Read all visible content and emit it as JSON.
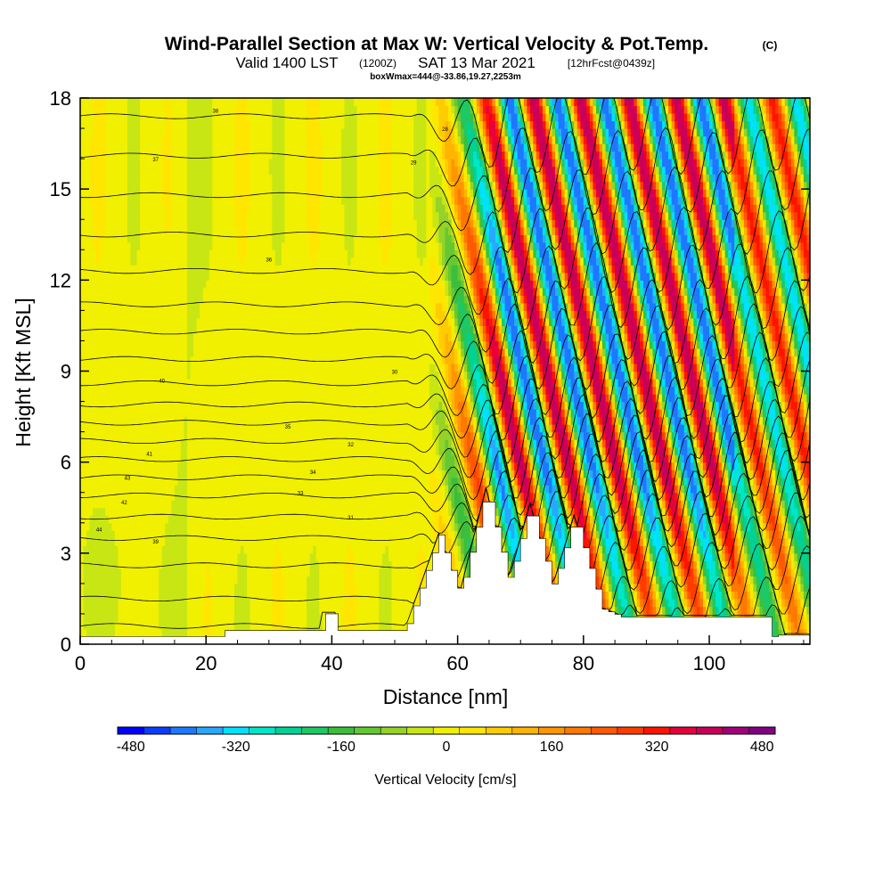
{
  "chart_data": {
    "type": "heatmap",
    "title": {
      "main": "Wind-Parallel Section at Max W: Vertical Velocity & Pot.Temp.",
      "copyright": "(C)",
      "valid_prefix": "Valid 1400 LST",
      "valid_utc": "(1200Z)",
      "valid_date": "SAT 13 Mar 2021",
      "forecast": "[12hrFcst@0439z]",
      "box_info": "boxWmax=444@-33.86,19.27,2253m"
    },
    "xlabel": "Distance [nm]",
    "ylabel": "Height [Kft MSL]",
    "xlim": [
      0,
      116
    ],
    "ylim": [
      0,
      18
    ],
    "xticks": [
      "0",
      "20",
      "40",
      "60",
      "80",
      "100"
    ],
    "yticks": [
      "0",
      "3",
      "6",
      "9",
      "12",
      "15",
      "18"
    ],
    "colorbar": {
      "label": "Vertical Velocity [cm/s]",
      "ticks": [
        "-480",
        "-320",
        "-160",
        "0",
        "160",
        "320",
        "480"
      ],
      "range": [
        -500,
        500
      ],
      "colors": [
        "#0000ff",
        "#0a3cff",
        "#1e78ff",
        "#28a8ff",
        "#00e0ff",
        "#00e6c8",
        "#00d296",
        "#1ec864",
        "#3cbe3c",
        "#64c832",
        "#96d228",
        "#c8e614",
        "#f0f000",
        "#ffe600",
        "#ffcc00",
        "#ffb400",
        "#ff9600",
        "#ff7800",
        "#ff5a00",
        "#ff3c00",
        "#ff1400",
        "#e6003c",
        "#c8005a",
        "#a00078",
        "#820082"
      ]
    },
    "contour_labels": [
      "44",
      "43",
      "42",
      "41",
      "40",
      "39",
      "38",
      "37",
      "36",
      "35",
      "34",
      "33",
      "32",
      "31",
      "30",
      "29",
      "28"
    ],
    "terrain_peaks_kft": [
      {
        "x": 57,
        "h": 3.6
      },
      {
        "x": 64.5,
        "h": 5.1
      },
      {
        "x": 71.5,
        "h": 4.6
      },
      {
        "x": 78.5,
        "h": 4.2
      }
    ],
    "updraft_bands_nm": [
      58,
      65,
      71,
      78,
      86,
      94,
      101,
      108
    ],
    "downdraft_bands_nm": [
      68,
      74,
      82,
      90,
      98,
      105
    ],
    "max_w_cms": 444
  }
}
